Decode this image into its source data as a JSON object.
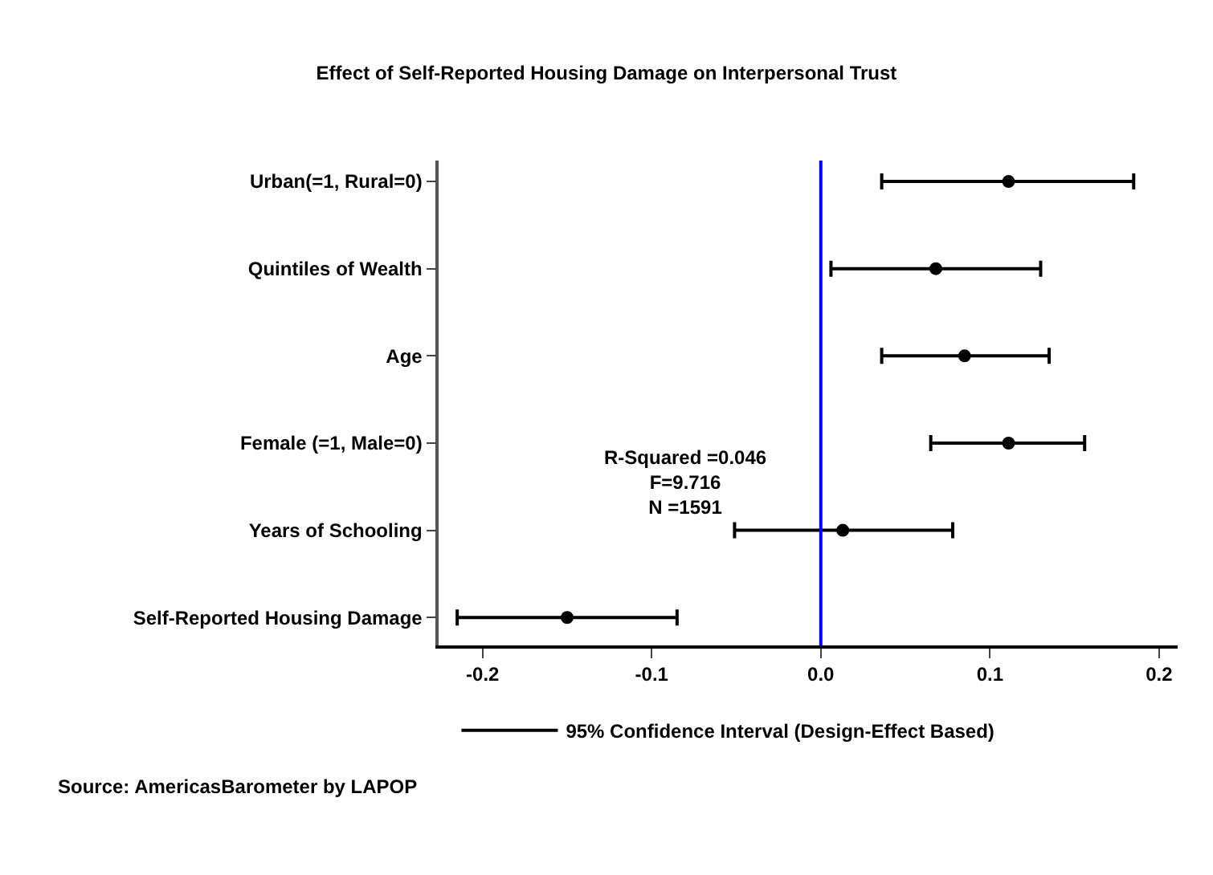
{
  "chart_data": {
    "type": "scatter",
    "orientation": "horizontal",
    "title": "Effect of Self-Reported Housing Damage on Interpersonal Trust",
    "categories": [
      "Urban(=1, Rural=0)",
      "Quintiles of Wealth",
      "Age",
      "Female (=1, Male=0)",
      "Years of Schooling",
      "Self-Reported Housing Damage"
    ],
    "series": [
      {
        "name": "95% Confidence Interval (Design-Effect Based)",
        "color": "#000000",
        "values": [
          0.111,
          0.068,
          0.085,
          0.111,
          0.013,
          -0.15
        ],
        "errors": [
          [
            0.036,
            0.185
          ],
          [
            0.006,
            0.13
          ],
          [
            0.036,
            0.135
          ],
          [
            0.065,
            0.156
          ],
          [
            -0.051,
            0.078
          ],
          [
            -0.215,
            -0.085
          ]
        ]
      }
    ],
    "xlim": [
      -0.226,
      0.211
    ],
    "xticks": [
      {
        "value": -0.2,
        "label": "-0.2"
      },
      {
        "value": -0.1,
        "label": "-0.1"
      },
      {
        "value": 0,
        "label": "0.0"
      },
      {
        "value": 0.1,
        "label": "0.1"
      },
      {
        "value": 0.2,
        "label": "0.2"
      }
    ],
    "ref_lines": [
      {
        "axis": "x",
        "value": 0,
        "color": "#0000ff"
      }
    ],
    "annotations": [
      "R-Squared =0.046\nF=9.716\nN =1591",
      "Source: AmericasBarometer by LAPOP"
    ],
    "marker": "circle",
    "legend": "bottom"
  }
}
